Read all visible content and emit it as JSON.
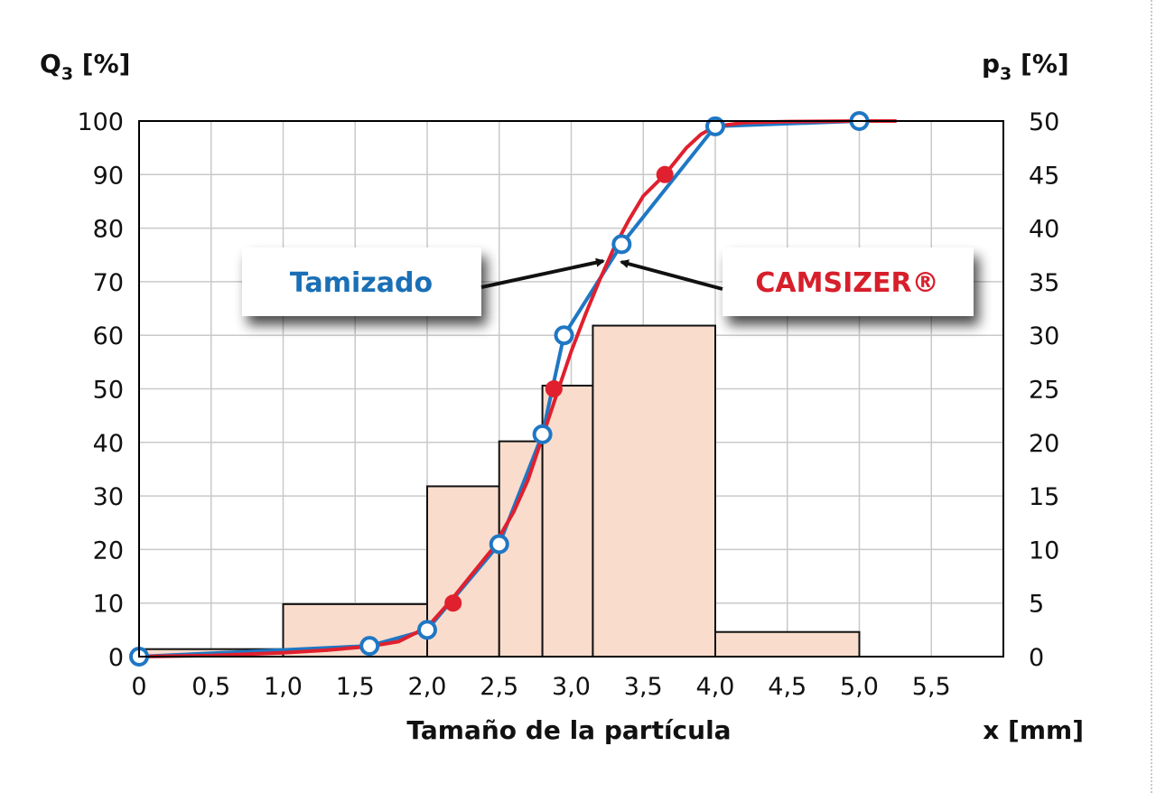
{
  "chart_data": {
    "type": "bar+line",
    "left_axis": {
      "label_main": "Q",
      "label_sub": "3",
      "label_unit": " [%]",
      "ticks": [
        "0",
        "10",
        "20",
        "30",
        "40",
        "50",
        "60",
        "70",
        "80",
        "90",
        "100"
      ],
      "ylim": [
        0,
        100
      ]
    },
    "right_axis": {
      "label_main": "p",
      "label_sub": "3",
      "label_unit": " [%]",
      "ticks": [
        "0",
        "5",
        "10",
        "15",
        "20",
        "25",
        "30",
        "35",
        "40",
        "45",
        "50"
      ],
      "ylim": [
        0,
        50
      ]
    },
    "x_axis": {
      "title": "Tamaño de la partícula",
      "unit_label": "x [mm]",
      "ticks": [
        "0",
        "0,5",
        "1,0",
        "1,5",
        "2,0",
        "2,5",
        "3,0",
        "3,5",
        "4,0",
        "4,5",
        "5,0",
        "5,5"
      ],
      "xlim": [
        0,
        6
      ]
    },
    "grid": true,
    "histogram": {
      "axis": "right",
      "color": "#f9dccc",
      "bins": [
        {
          "x0": 0.0,
          "x1": 1.0,
          "p3": 0.7
        },
        {
          "x0": 1.0,
          "x1": 2.0,
          "p3": 4.9
        },
        {
          "x0": 2.0,
          "x1": 2.5,
          "p3": 15.9
        },
        {
          "x0": 2.5,
          "x1": 2.8,
          "p3": 20.1
        },
        {
          "x0": 2.8,
          "x1": 3.15,
          "p3": 25.3
        },
        {
          "x0": 3.15,
          "x1": 4.0,
          "p3": 30.9
        },
        {
          "x0": 4.0,
          "x1": 5.0,
          "p3": 2.3
        }
      ]
    },
    "series": [
      {
        "name": "Tamizado",
        "color": "#1f77c4",
        "marker": "open-circle",
        "x": [
          0,
          1.6,
          2.0,
          2.5,
          2.8,
          2.95,
          3.35,
          4.0,
          5.0
        ],
        "y": [
          0,
          2,
          5,
          21,
          41.5,
          60,
          77,
          99,
          100
        ]
      },
      {
        "name": "CAMSIZER®",
        "color": "#e0202e",
        "marker": "filled-circle",
        "x": [
          0,
          0.5,
          1.0,
          1.3,
          1.6,
          1.8,
          2.0,
          2.15,
          2.3,
          2.45,
          2.6,
          2.7,
          2.8,
          2.9,
          3.0,
          3.1,
          3.2,
          3.3,
          3.4,
          3.5,
          3.65,
          3.8,
          3.9,
          4.0,
          4.2,
          4.5,
          5.0,
          5.25
        ],
        "y": [
          0,
          0.2,
          0.7,
          1.2,
          1.9,
          2.8,
          5.5,
          10,
          15,
          20,
          27,
          33,
          41,
          49,
          57,
          64,
          70.5,
          76.5,
          81.5,
          86,
          90,
          95,
          97.5,
          99,
          99.7,
          99.9,
          100,
          100
        ],
        "marker_points": [
          [
            2.18,
            10
          ],
          [
            2.88,
            50
          ],
          [
            3.65,
            90
          ]
        ]
      }
    ],
    "annotations": [
      {
        "text": "Tamizado",
        "color": "#1a6fb5"
      },
      {
        "text": "CAMSIZER®",
        "color": "#d71f2b"
      }
    ]
  }
}
